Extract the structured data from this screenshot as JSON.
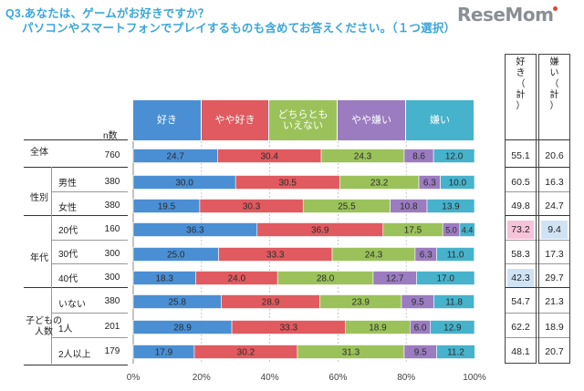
{
  "title_line1": "Q3.あなたは、ゲームがお好きですか？",
  "title_line2": "パソコンやスマートフォンでプレイするものも含めてお答えください。（１つ選択）",
  "logo": "ReseMom",
  "n_header": "n数",
  "labels": {
    "total": "全体",
    "gender": "性別",
    "male": "男性",
    "female": "女性",
    "age": "年代",
    "age20": "20代",
    "age30": "30代",
    "age40": "40代",
    "children": "子どもの\n人数",
    "none": "いない",
    "one": "1人",
    "twoplus": "2人以上"
  },
  "like_header": "好\nき\n（\n計\n）",
  "dislike_header": "嫌\nい\n（\n計\n）",
  "colors": {
    "like": "#4a8fd4",
    "somewhat_like": "#e05a5f",
    "neutral": "#9bc25a",
    "somewhat_dislike": "#9b7cc0",
    "dislike": "#46b2cc"
  },
  "chart_data": {
    "type": "bar",
    "orientation": "horizontal",
    "stacked": true,
    "percent_stacked": true,
    "legend_position": "top",
    "xlim": [
      0,
      100
    ],
    "x_ticks": [
      "0%",
      "20%",
      "40%",
      "60%",
      "80%",
      "100%"
    ],
    "grid": "vertical",
    "categories": [
      "全体",
      "男性",
      "女性",
      "20代",
      "30代",
      "40代",
      "いない",
      "1人",
      "2人以上"
    ],
    "n": [
      760,
      380,
      380,
      160,
      300,
      300,
      380,
      201,
      179
    ],
    "series": [
      {
        "name": "好き",
        "values": [
          24.7,
          30.0,
          19.5,
          36.3,
          25.0,
          18.3,
          25.8,
          28.9,
          17.9
        ]
      },
      {
        "name": "やや好き",
        "values": [
          30.4,
          30.5,
          30.3,
          36.9,
          33.3,
          24.0,
          28.9,
          33.3,
          30.2
        ]
      },
      {
        "name": "どちらとも\nいえない",
        "values": [
          24.3,
          23.2,
          25.5,
          17.5,
          24.3,
          28.0,
          23.9,
          18.9,
          31.3
        ]
      },
      {
        "name": "やや嫌い",
        "values": [
          8.6,
          6.3,
          10.8,
          5.0,
          6.3,
          12.7,
          9.5,
          6.0,
          9.5
        ]
      },
      {
        "name": "嫌い",
        "values": [
          12.0,
          10.0,
          13.9,
          4.4,
          11.0,
          17.0,
          11.8,
          12.9,
          11.2
        ]
      }
    ],
    "like_total": [
      55.1,
      60.5,
      49.8,
      73.2,
      58.3,
      42.3,
      54.7,
      62.2,
      48.1
    ],
    "dislike_total": [
      20.6,
      16.3,
      24.7,
      9.4,
      17.3,
      29.7,
      21.3,
      18.9,
      20.7
    ],
    "highlight_like": {
      "73.2": "#f7c3d9",
      "42.3": "#cfe3f5"
    },
    "highlight_dislike": {
      "9.4": "#cfe3f5"
    }
  }
}
